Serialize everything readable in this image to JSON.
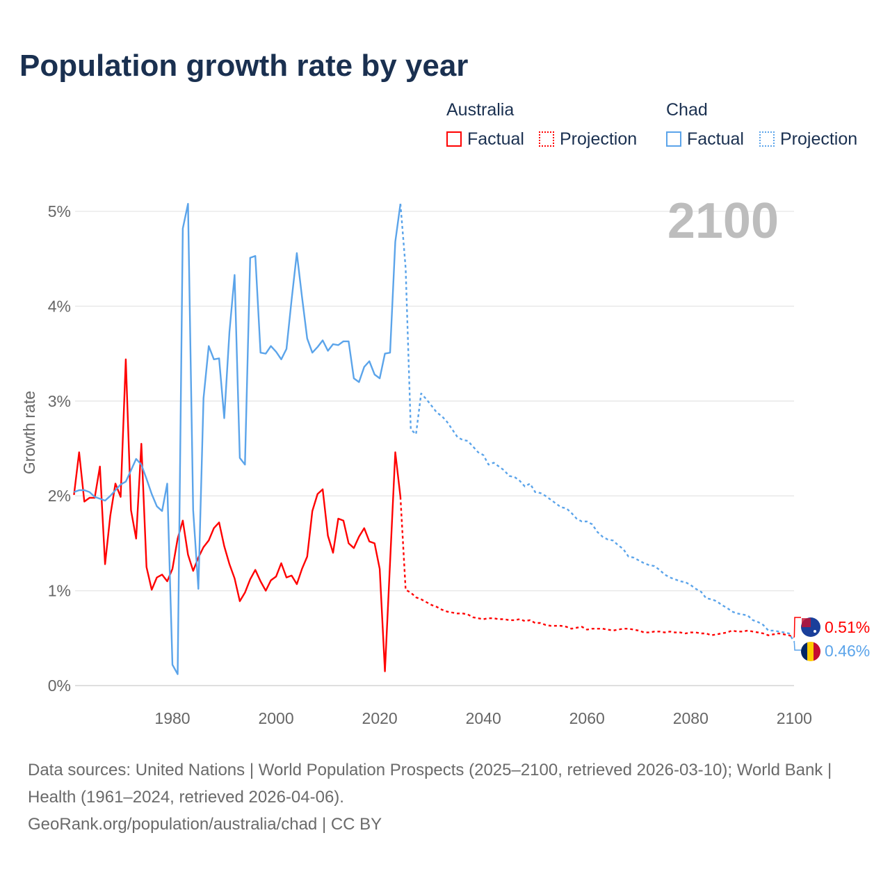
{
  "title": "Population growth rate by year",
  "legend": {
    "groups": [
      {
        "name": "Australia",
        "factual": "Factual",
        "projection": "Projection",
        "color": "#ff0000"
      },
      {
        "name": "Chad",
        "factual": "Factual",
        "projection": "Projection",
        "color": "#5ba4ea"
      }
    ]
  },
  "year_label": "2100",
  "end_labels": {
    "australia": "0.51%",
    "chad": "0.46%"
  },
  "footer": {
    "line1": "Data sources: United Nations | World Population Prospects (2025–2100, retrieved 2026-03-10); World Bank | Health (1961–2024, retrieved 2026-04-06).",
    "line2": "GeoRank.org/population/australia/chad | CC BY"
  },
  "chart_data": {
    "type": "line",
    "title": "Population growth rate by year",
    "xlabel": "",
    "ylabel": "Growth rate",
    "xlim": [
      1961,
      2100
    ],
    "ylim": [
      0,
      5
    ],
    "xticks": [
      {
        "v": 1980,
        "label": "1980"
      },
      {
        "v": 2000,
        "label": "2000"
      },
      {
        "v": 2020,
        "label": "2020"
      },
      {
        "v": 2040,
        "label": "2040"
      },
      {
        "v": 2060,
        "label": "2060"
      },
      {
        "v": 2080,
        "label": "2080"
      },
      {
        "v": 2100,
        "label": "2100"
      }
    ],
    "yticks": [
      {
        "v": 0,
        "label": "0%"
      },
      {
        "v": 1,
        "label": "1%"
      },
      {
        "v": 2,
        "label": "2%"
      },
      {
        "v": 3,
        "label": "3%"
      },
      {
        "v": 4,
        "label": "4%"
      },
      {
        "v": 5,
        "label": "5%"
      }
    ],
    "series": [
      {
        "name": "Australia Factual",
        "color": "#ff0000",
        "dashed": false,
        "start": 1961,
        "values": [
          2.01,
          2.46,
          1.94,
          1.98,
          1.98,
          2.31,
          1.28,
          1.79,
          2.13,
          1.99,
          3.44,
          1.85,
          1.55,
          2.55,
          1.25,
          1.01,
          1.14,
          1.17,
          1.1,
          1.23,
          1.55,
          1.74,
          1.38,
          1.21,
          1.35,
          1.46,
          1.53,
          1.66,
          1.72,
          1.47,
          1.28,
          1.13,
          0.89,
          0.98,
          1.12,
          1.22,
          1.1,
          1.0,
          1.11,
          1.15,
          1.29,
          1.14,
          1.16,
          1.07,
          1.23,
          1.36,
          1.84,
          2.02,
          2.07,
          1.58,
          1.4,
          1.76,
          1.74,
          1.5,
          1.45,
          1.57,
          1.66,
          1.52,
          1.5,
          1.23,
          0.15,
          1.3,
          2.46,
          1.99
        ]
      },
      {
        "name": "Australia Projection",
        "color": "#ff0000",
        "dashed": true,
        "start": 2024,
        "values": [
          1.99,
          1.01,
          0.98,
          0.93,
          0.91,
          0.88,
          0.85,
          0.83,
          0.8,
          0.78,
          0.77,
          0.76,
          0.76,
          0.75,
          0.72,
          0.71,
          0.7,
          0.71,
          0.71,
          0.7,
          0.7,
          0.69,
          0.69,
          0.7,
          0.68,
          0.69,
          0.66,
          0.66,
          0.64,
          0.63,
          0.63,
          0.63,
          0.62,
          0.6,
          0.61,
          0.62,
          0.59,
          0.6,
          0.6,
          0.6,
          0.59,
          0.58,
          0.59,
          0.6,
          0.6,
          0.59,
          0.58,
          0.56,
          0.56,
          0.57,
          0.57,
          0.56,
          0.57,
          0.56,
          0.56,
          0.55,
          0.56,
          0.56,
          0.55,
          0.55,
          0.53,
          0.54,
          0.55,
          0.56,
          0.58,
          0.57,
          0.57,
          0.58,
          0.57,
          0.56,
          0.55,
          0.53,
          0.54,
          0.55,
          0.54,
          0.53,
          0.51
        ]
      },
      {
        "name": "Chad Factual",
        "color": "#5ba4ea",
        "dashed": false,
        "start": 1961,
        "values": [
          2.04,
          2.06,
          2.06,
          2.04,
          1.99,
          1.97,
          1.95,
          2.0,
          2.06,
          2.12,
          2.15,
          2.27,
          2.39,
          2.33,
          2.18,
          2.02,
          1.89,
          1.84,
          2.13,
          0.22,
          0.12,
          4.82,
          5.08,
          1.85,
          1.02,
          3.03,
          3.58,
          3.44,
          3.45,
          2.82,
          3.73,
          4.33,
          2.4,
          2.33,
          4.51,
          4.53,
          3.51,
          3.5,
          3.58,
          3.52,
          3.44,
          3.55,
          4.07,
          4.56,
          4.1,
          3.66,
          3.51,
          3.57,
          3.64,
          3.53,
          3.6,
          3.59,
          3.63,
          3.63,
          3.24,
          3.2,
          3.36,
          3.42,
          3.28,
          3.24,
          3.5,
          3.51,
          4.68,
          5.08
        ]
      },
      {
        "name": "Chad Projection",
        "color": "#5ba4ea",
        "dashed": true,
        "start": 2024,
        "values": [
          5.08,
          4.4,
          2.7,
          2.65,
          3.08,
          3.02,
          2.95,
          2.88,
          2.84,
          2.78,
          2.7,
          2.62,
          2.59,
          2.58,
          2.52,
          2.46,
          2.43,
          2.33,
          2.35,
          2.31,
          2.27,
          2.21,
          2.2,
          2.16,
          2.1,
          2.13,
          2.04,
          2.03,
          2.0,
          1.96,
          1.92,
          1.88,
          1.87,
          1.82,
          1.76,
          1.73,
          1.73,
          1.7,
          1.62,
          1.57,
          1.54,
          1.53,
          1.48,
          1.44,
          1.36,
          1.35,
          1.32,
          1.29,
          1.27,
          1.26,
          1.22,
          1.17,
          1.14,
          1.12,
          1.1,
          1.09,
          1.06,
          1.02,
          0.99,
          0.92,
          0.91,
          0.89,
          0.85,
          0.82,
          0.78,
          0.76,
          0.75,
          0.74,
          0.69,
          0.67,
          0.64,
          0.58,
          0.58,
          0.57,
          0.56,
          0.55,
          0.46
        ]
      }
    ]
  }
}
